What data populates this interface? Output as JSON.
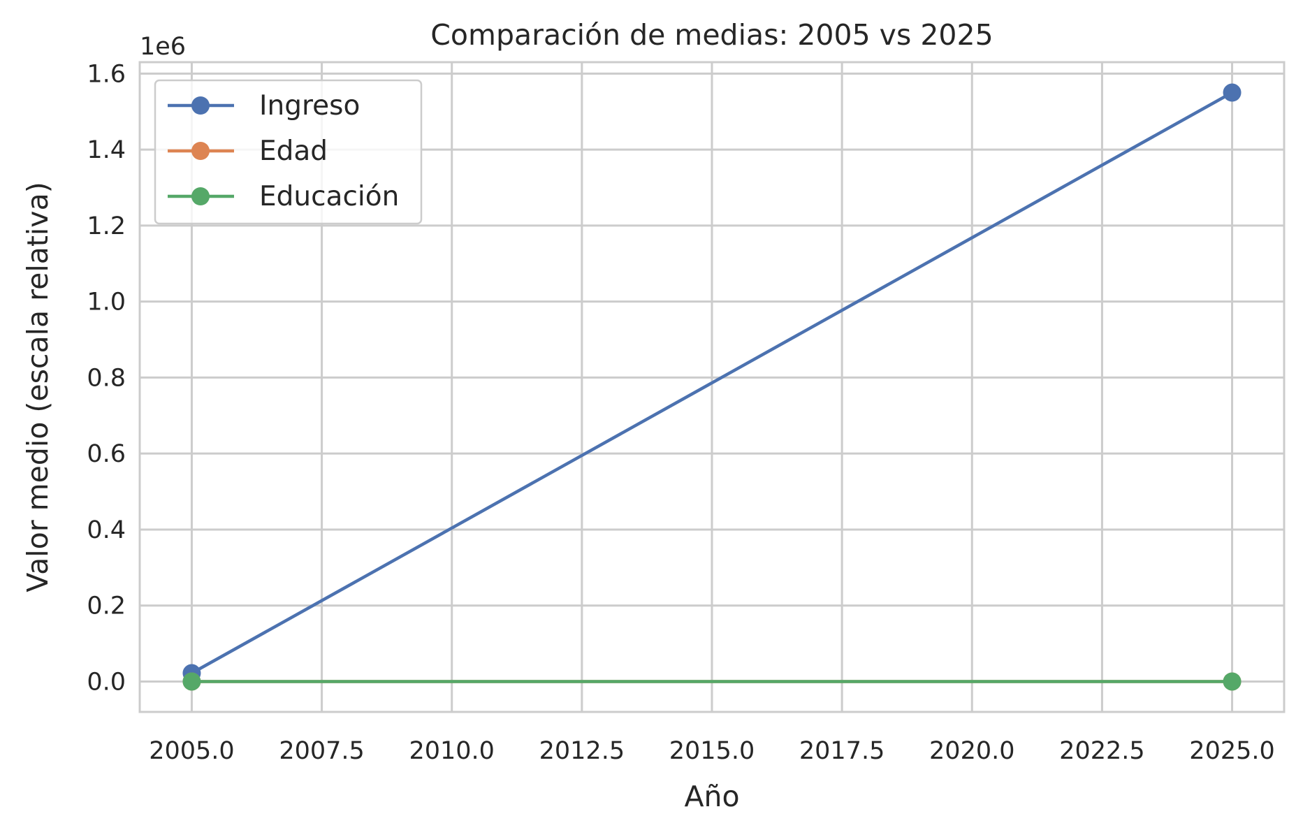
{
  "chart_data": {
    "type": "line",
    "title": "Comparación de medias: 2005 vs 2025",
    "xlabel": "Año",
    "ylabel": "Valor medio (escala relativa)",
    "y_offset_label": "1e6",
    "x": [
      2005,
      2025
    ],
    "xlim": [
      2004,
      2026
    ],
    "ylim": [
      -0.08,
      1.63
    ],
    "x_ticks": [
      2005.0,
      2007.5,
      2010.0,
      2012.5,
      2015.0,
      2017.5,
      2020.0,
      2022.5,
      2025.0
    ],
    "x_tick_labels": [
      "2005.0",
      "2007.5",
      "2010.0",
      "2012.5",
      "2015.0",
      "2017.5",
      "2020.0",
      "2022.5",
      "2025.0"
    ],
    "y_ticks": [
      0.0,
      0.2,
      0.4,
      0.6,
      0.8,
      1.0,
      1.2,
      1.4,
      1.6
    ],
    "y_tick_labels": [
      "0.0",
      "0.2",
      "0.4",
      "0.6",
      "0.8",
      "1.0",
      "1.2",
      "1.4",
      "1.6"
    ],
    "grid": true,
    "legend_position": "top-left",
    "series": [
      {
        "name": "Ingreso",
        "values": [
          0.022,
          1.55
        ],
        "color": "#4c72b0"
      },
      {
        "name": "Edad",
        "values": [
          0.0,
          0.0
        ],
        "color": "#dd8452"
      },
      {
        "name": "Educación",
        "values": [
          0.0,
          0.0
        ],
        "color": "#55a868"
      }
    ]
  }
}
